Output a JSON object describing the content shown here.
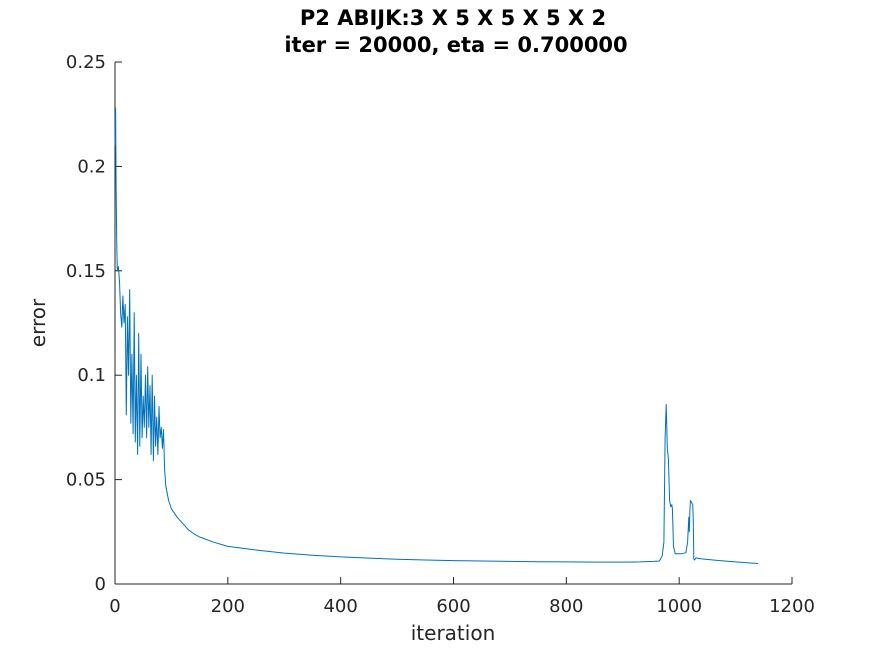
{
  "chart_data": {
    "type": "line",
    "title": "P2 ABIJK:3 X 5 X 5 X 5 X 2",
    "subtitle": "iter = 20000, eta = 0.700000",
    "xlabel": "iteration",
    "ylabel": "error",
    "xlim": [
      0,
      1200
    ],
    "ylim": [
      0,
      0.25
    ],
    "xticks": [
      "0",
      "200",
      "400",
      "600",
      "800",
      "1000",
      "1200"
    ],
    "yticks": [
      "0",
      "0.05",
      "0.1",
      "0.15",
      "0.2",
      "0.25"
    ],
    "grid": false,
    "series_color": "#0072BD",
    "series": [
      {
        "x": [
          0,
          1,
          2,
          3,
          4,
          6,
          8,
          10,
          12,
          14,
          16,
          18,
          20,
          22,
          24,
          26,
          28,
          30,
          32,
          34,
          36,
          38,
          40,
          42,
          44,
          46,
          48,
          50,
          52,
          54,
          56,
          58,
          60,
          62,
          64,
          66,
          68,
          70,
          72,
          74,
          76,
          78,
          80,
          82,
          84,
          86,
          88,
          90,
          95,
          100,
          110,
          120,
          130,
          140,
          150,
          175,
          200,
          250,
          300,
          350,
          400,
          450,
          500,
          550,
          600,
          650,
          700,
          750,
          800,
          850,
          900,
          930,
          955,
          965,
          970,
          973,
          975,
          977,
          979,
          981,
          983,
          985,
          987,
          988,
          990,
          993,
          998,
          1005,
          1012,
          1015,
          1017,
          1018,
          1019,
          1020,
          1022,
          1024,
          1025,
          1026,
          1027,
          1030,
          1035,
          1040,
          1060,
          1080,
          1100,
          1120,
          1140
        ],
        "y": [
          0.21,
          0.228,
          0.19,
          0.165,
          0.15,
          0.152,
          0.145,
          0.13,
          0.123,
          0.138,
          0.125,
          0.134,
          0.081,
          0.128,
          0.1,
          0.141,
          0.077,
          0.11,
          0.072,
          0.13,
          0.068,
          0.1,
          0.062,
          0.12,
          0.066,
          0.11,
          0.07,
          0.09,
          0.075,
          0.1,
          0.07,
          0.104,
          0.075,
          0.095,
          0.062,
          0.1,
          0.059,
          0.09,
          0.066,
          0.08,
          0.062,
          0.085,
          0.07,
          0.075,
          0.065,
          0.074,
          0.055,
          0.047,
          0.04,
          0.036,
          0.032,
          0.029,
          0.026,
          0.024,
          0.0225,
          0.02,
          0.018,
          0.0163,
          0.0148,
          0.0138,
          0.013,
          0.0124,
          0.0119,
          0.0115,
          0.0112,
          0.011,
          0.0108,
          0.0107,
          0.0106,
          0.0105,
          0.0105,
          0.0106,
          0.0108,
          0.011,
          0.0135,
          0.02,
          0.07,
          0.086,
          0.065,
          0.06,
          0.04,
          0.037,
          0.038,
          0.036,
          0.018,
          0.0145,
          0.0145,
          0.0145,
          0.015,
          0.02,
          0.032,
          0.025,
          0.035,
          0.04,
          0.039,
          0.038,
          0.03,
          0.012,
          0.0115,
          0.0125,
          0.0122,
          0.012,
          0.0115,
          0.011,
          0.0106,
          0.0102,
          0.0098
        ]
      }
    ]
  }
}
